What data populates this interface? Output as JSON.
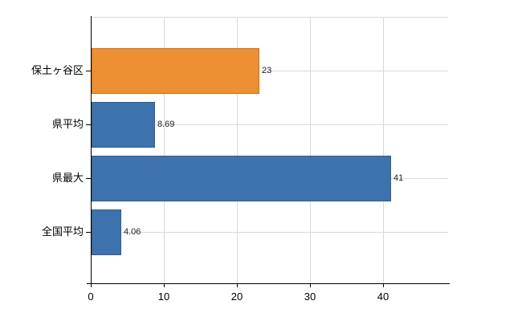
{
  "chart_data": {
    "type": "bar",
    "orientation": "horizontal",
    "title": "",
    "xlabel": "",
    "ylabel": "",
    "categories": [
      "保土ヶ谷区",
      "県平均",
      "県最大",
      "全国平均"
    ],
    "values": [
      23,
      8.69,
      41,
      4.06
    ],
    "value_labels": [
      "23",
      "8.69",
      "41",
      "4.06"
    ],
    "bar_colors": [
      "#ED8F33",
      "#3E72AC",
      "#3E72AC",
      "#3E72AC"
    ],
    "bar_border_colors": [
      "#C8741F",
      "#2F5E94",
      "#2F5E94",
      "#2F5E94"
    ],
    "x_tick_labels": [
      "0",
      "10",
      "20",
      "30",
      "40"
    ],
    "x_tick_values": [
      0,
      10,
      20,
      30,
      40
    ],
    "xlim": [
      0,
      49
    ],
    "grid": "on",
    "legend": "none"
  },
  "colors": {
    "bar_orange": "#ED8F33",
    "bar_blue": "#3E72AC",
    "grid": "#d9d9d9",
    "axis": "#000000",
    "value_label": "#222222",
    "tick_label": "#000000",
    "background": "#ffffff"
  }
}
